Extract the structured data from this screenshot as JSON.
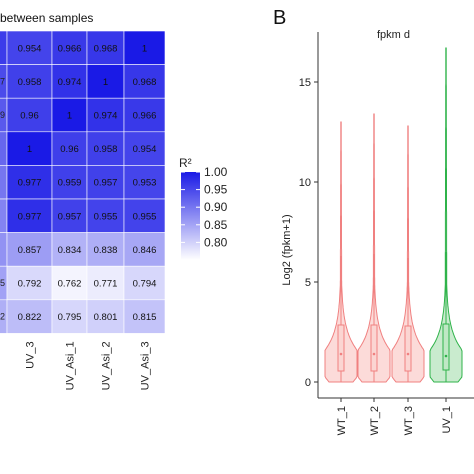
{
  "chart_data": [
    {
      "type": "heatmap",
      "title": "between samples",
      "columns": [
        "",
        "UV_3",
        "UV_Asi_1",
        "UV_Asi_2",
        "UV_Asi_3"
      ],
      "row_labels": [
        "",
        "7",
        "9",
        "",
        "",
        "",
        "",
        "5",
        "2"
      ],
      "values": [
        [
          null,
          0.954,
          0.966,
          0.968,
          1
        ],
        [
          null,
          0.958,
          0.974,
          1,
          0.968
        ],
        [
          null,
          0.96,
          1,
          0.974,
          0.966
        ],
        [
          null,
          1,
          0.96,
          0.958,
          0.954
        ],
        [
          null,
          0.977,
          0.959,
          0.957,
          0.953
        ],
        [
          null,
          0.977,
          0.957,
          0.955,
          0.955
        ],
        [
          null,
          0.857,
          0.834,
          0.838,
          0.846
        ],
        [
          null,
          0.792,
          0.762,
          0.771,
          0.794
        ],
        [
          null,
          0.822,
          0.795,
          0.801,
          0.815
        ]
      ],
      "cell_labels": [
        [
          "",
          "0.954",
          "0.966",
          "0.968",
          "1"
        ],
        [
          "",
          "0.958",
          "0.974",
          "1",
          "0.968"
        ],
        [
          "",
          "0.96",
          "1",
          "0.974",
          "0.966"
        ],
        [
          "",
          "1",
          "0.96",
          "0.958",
          "0.954"
        ],
        [
          "",
          "0.977",
          "0.959",
          "0.957",
          "0.953"
        ],
        [
          "",
          "0.977",
          "0.957",
          "0.955",
          "0.955"
        ],
        [
          "",
          "0.857",
          "0.834",
          "0.838",
          "0.846"
        ],
        [
          "",
          "0.792",
          "0.762",
          "0.771",
          "0.794"
        ],
        [
          "",
          "0.822",
          "0.795",
          "0.801",
          "0.815"
        ]
      ],
      "color_scale": {
        "title": "R²",
        "min": 0.75,
        "max": 1.0,
        "ticks": [
          1.0,
          0.95,
          0.9,
          0.85,
          0.8
        ],
        "tick_labels": [
          "1.00",
          "0.95",
          "0.90",
          "0.85",
          "0.80"
        ],
        "low_color": "#ffffff",
        "high_color": "#1a1ae6"
      }
    },
    {
      "type": "violin",
      "panel_label": "B",
      "title": "fpkm d",
      "xlabel": "",
      "ylabel": "Log2 (fpkm+1)",
      "ylim": [
        -0.8,
        17.5
      ],
      "yticks": [
        0,
        5,
        10,
        15
      ],
      "categories": [
        "WT_1",
        "WT_2",
        "WT_3",
        "UV_1"
      ],
      "groups": [
        {
          "category": "WT_1",
          "color": "#f08080",
          "fill": "#fbd5d2",
          "max": 13.0,
          "q1": 0.55,
          "median": 1.4,
          "q3": 2.85,
          "whisker_low": 0,
          "whisker_high": 6.3
        },
        {
          "category": "WT_2",
          "color": "#f08080",
          "fill": "#fbd5d2",
          "max": 13.4,
          "q1": 0.55,
          "median": 1.4,
          "q3": 2.85,
          "whisker_low": 0,
          "whisker_high": 6.4
        },
        {
          "category": "WT_3",
          "color": "#f08080",
          "fill": "#fbd5d2",
          "max": 12.8,
          "q1": 0.55,
          "median": 1.4,
          "q3": 2.8,
          "whisker_low": 0,
          "whisker_high": 6.2
        },
        {
          "category": "UV_1",
          "color": "#2fb34a",
          "fill": "#bfe8c5",
          "max": 16.7,
          "q1": 0.6,
          "median": 1.3,
          "q3": 2.9,
          "whisker_low": 0,
          "whisker_high": 6.5
        }
      ]
    }
  ],
  "colors": {
    "axis": "#333333",
    "cell_border": "#ffffff"
  }
}
